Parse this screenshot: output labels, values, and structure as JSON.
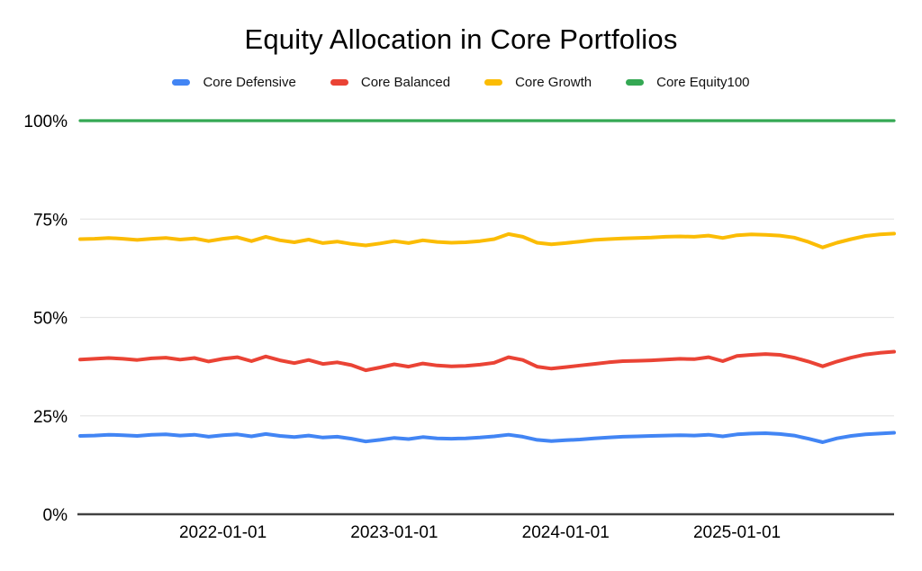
{
  "page": {
    "background": "#ffffff",
    "text_color": "#000000"
  },
  "chart_data": {
    "type": "line",
    "title": "Equity Allocation in Core Portfolios",
    "xlabel": "",
    "ylabel": "",
    "ylim": [
      0,
      100
    ],
    "grid": true,
    "legend_position": "top",
    "axis_color": "#424242",
    "gridline_color": "#e6e6e6",
    "label_color": "#000000",
    "y_ticks": [
      {
        "value": 0,
        "label": "0%"
      },
      {
        "value": 25,
        "label": "25%"
      },
      {
        "value": 50,
        "label": "50%"
      },
      {
        "value": 75,
        "label": "75%"
      },
      {
        "value": 100,
        "label": "100%"
      }
    ],
    "x": [
      "2021-03",
      "2021-04",
      "2021-05",
      "2021-06",
      "2021-07",
      "2021-08",
      "2021-09",
      "2021-10",
      "2021-11",
      "2021-12",
      "2022-01",
      "2022-02",
      "2022-03",
      "2022-04",
      "2022-05",
      "2022-06",
      "2022-07",
      "2022-08",
      "2022-09",
      "2022-10",
      "2022-11",
      "2022-12",
      "2023-01",
      "2023-02",
      "2023-03",
      "2023-04",
      "2023-05",
      "2023-06",
      "2023-07",
      "2023-08",
      "2023-09",
      "2023-10",
      "2023-11",
      "2023-12",
      "2024-01",
      "2024-02",
      "2024-03",
      "2024-04",
      "2024-05",
      "2024-06",
      "2024-07",
      "2024-08",
      "2024-09",
      "2024-10",
      "2024-11",
      "2024-12",
      "2025-01",
      "2025-02",
      "2025-03",
      "2025-04",
      "2025-05",
      "2025-06",
      "2025-07",
      "2025-08",
      "2025-09",
      "2025-10",
      "2025-11",
      "2025-12"
    ],
    "x_ticks": [
      {
        "x": "2022-01",
        "label": "2022-01-01"
      },
      {
        "x": "2023-01",
        "label": "2023-01-01"
      },
      {
        "x": "2024-01",
        "label": "2024-01-01"
      },
      {
        "x": "2025-01",
        "label": "2025-01-01"
      }
    ],
    "series": [
      {
        "name": "Core Defensive",
        "color": "#4285F4",
        "line_width": 4,
        "values": [
          19.9,
          20.0,
          20.2,
          20.1,
          19.9,
          20.2,
          20.3,
          20.0,
          20.2,
          19.7,
          20.1,
          20.3,
          19.8,
          20.4,
          19.9,
          19.6,
          20.0,
          19.5,
          19.7,
          19.2,
          18.5,
          18.9,
          19.4,
          19.1,
          19.6,
          19.3,
          19.2,
          19.3,
          19.5,
          19.8,
          20.2,
          19.7,
          18.9,
          18.6,
          18.8,
          19.0,
          19.3,
          19.5,
          19.7,
          19.8,
          19.9,
          20.0,
          20.1,
          20.0,
          20.2,
          19.8,
          20.3,
          20.5,
          20.6,
          20.4,
          20.0,
          19.2,
          18.3,
          19.3,
          19.9,
          20.3,
          20.5,
          20.7
        ]
      },
      {
        "name": "Core Balanced",
        "color": "#EA4335",
        "line_width": 4,
        "values": [
          39.3,
          39.5,
          39.7,
          39.5,
          39.2,
          39.6,
          39.8,
          39.3,
          39.7,
          38.8,
          39.5,
          39.9,
          38.9,
          40.1,
          39.1,
          38.4,
          39.2,
          38.2,
          38.6,
          37.9,
          36.6,
          37.3,
          38.1,
          37.5,
          38.3,
          37.8,
          37.6,
          37.7,
          38.0,
          38.5,
          39.9,
          39.2,
          37.5,
          37.0,
          37.4,
          37.8,
          38.2,
          38.6,
          38.9,
          39.0,
          39.1,
          39.3,
          39.5,
          39.4,
          39.9,
          38.9,
          40.2,
          40.5,
          40.7,
          40.5,
          39.8,
          38.8,
          37.6,
          38.8,
          39.8,
          40.6,
          41.0,
          41.3
        ]
      },
      {
        "name": "Core Growth",
        "color": "#FBBC04",
        "line_width": 4,
        "values": [
          69.9,
          70.0,
          70.2,
          70.0,
          69.7,
          70.0,
          70.2,
          69.8,
          70.1,
          69.4,
          70.0,
          70.4,
          69.4,
          70.5,
          69.6,
          69.1,
          69.8,
          68.9,
          69.3,
          68.7,
          68.3,
          68.8,
          69.4,
          68.9,
          69.6,
          69.2,
          69.0,
          69.1,
          69.4,
          69.9,
          71.2,
          70.5,
          69.0,
          68.6,
          68.9,
          69.3,
          69.7,
          69.9,
          70.1,
          70.2,
          70.3,
          70.5,
          70.6,
          70.5,
          70.8,
          70.2,
          70.9,
          71.1,
          71.0,
          70.8,
          70.3,
          69.2,
          67.8,
          69.0,
          69.9,
          70.7,
          71.1,
          71.3
        ]
      },
      {
        "name": "Core Equity100",
        "color": "#34A853",
        "line_width": 3.2,
        "values": [
          100,
          100,
          100,
          100,
          100,
          100,
          100,
          100,
          100,
          100,
          100,
          100,
          100,
          100,
          100,
          100,
          100,
          100,
          100,
          100,
          100,
          100,
          100,
          100,
          100,
          100,
          100,
          100,
          100,
          100,
          100,
          100,
          100,
          100,
          100,
          100,
          100,
          100,
          100,
          100,
          100,
          100,
          100,
          100,
          100,
          100,
          100,
          100,
          100,
          100,
          100,
          100,
          100,
          100,
          100,
          100,
          100,
          100
        ]
      }
    ]
  }
}
